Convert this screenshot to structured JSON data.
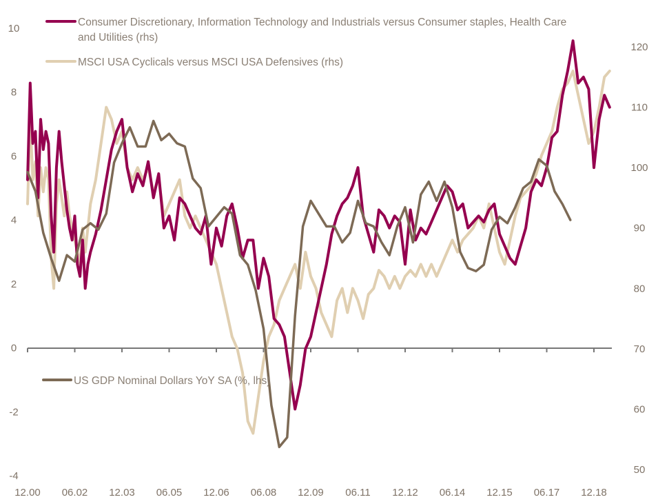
{
  "chart_data": {
    "type": "line",
    "title": "",
    "xlabel": "",
    "ylabel": "",
    "ylabel_right": "",
    "grid": false,
    "x_tick_labels": [
      "12.00",
      "06.02",
      "12.03",
      "06.05",
      "12.06",
      "06.08",
      "12.09",
      "06.11",
      "12.12",
      "06.14",
      "12.15",
      "06.17",
      "12.18"
    ],
    "x_range": [
      "2000-12",
      "2019-07"
    ],
    "ylim_left": [
      -4,
      10
    ],
    "ylim_right": [
      50,
      120
    ],
    "y_ticks_left": [
      "10",
      "8",
      "6",
      "4",
      "2",
      "0",
      "-2",
      "-4"
    ],
    "y_ticks_right": [
      "120",
      "110",
      "100",
      "90",
      "80",
      "70",
      "60",
      "50"
    ],
    "legend": [
      {
        "key": "discretionary",
        "label_lines": [
          "Consumer Discretionary, Information Technology and Industrials versus Consumer staples, Health Care",
          "and Utilities (rhs)"
        ],
        "color": "#95004f",
        "placement": "top-left"
      },
      {
        "key": "msci",
        "label_lines": [
          "MSCI USA Cyclicals versus MSCI USA Defensives (rhs)"
        ],
        "color": "#e0cfb1",
        "placement": "top-left"
      },
      {
        "key": "gdp",
        "label_lines": [
          "US GDP Nominal Dollars YoY SA (%, lhs)"
        ],
        "color": "#7d6a55",
        "placement": "middle-left"
      }
    ],
    "series": [
      {
        "name": "Consumer Discretionary, Information Technology and Industrials versus Consumer staples, Health Care and Utilities (rhs)",
        "axis": "right",
        "color": "#95004f",
        "x_months_from_dec2000": [
          0,
          1,
          2,
          3,
          4,
          5,
          6,
          7,
          8,
          9,
          10,
          11,
          12,
          13,
          14,
          15,
          16,
          17,
          18,
          19,
          20,
          21,
          22,
          23,
          24,
          26,
          28,
          30,
          32,
          34,
          36,
          38,
          40,
          42,
          44,
          46,
          48,
          50,
          52,
          54,
          56,
          58,
          60,
          62,
          64,
          66,
          68,
          70,
          72,
          74,
          76,
          78,
          80,
          82,
          84,
          86,
          88,
          90,
          92,
          94,
          96,
          98,
          100,
          102,
          104,
          106,
          108,
          110,
          112,
          114,
          116,
          118,
          120,
          122,
          124,
          126,
          128,
          130,
          132,
          134,
          136,
          138,
          140,
          142,
          144,
          146,
          148,
          150,
          152,
          154,
          156,
          158,
          160,
          162,
          164,
          166,
          168,
          170,
          172,
          174,
          176,
          178,
          180,
          182,
          184,
          186,
          188,
          190,
          192,
          194,
          196,
          198,
          200,
          202,
          204,
          206,
          208,
          210,
          212,
          214,
          216,
          218,
          220,
          222
        ],
        "values": [
          98,
          114,
          104,
          106,
          95,
          108,
          103,
          106,
          104,
          92,
          86,
          100,
          106,
          101,
          97,
          93,
          90,
          88,
          92,
          84,
          82,
          88,
          80,
          84,
          86,
          89,
          93,
          98,
          103,
          106,
          108,
          100,
          96,
          99,
          97,
          101,
          95,
          99,
          90,
          92,
          88,
          95,
          94,
          92,
          90,
          89,
          92,
          84,
          90,
          87,
          92,
          94,
          90,
          85,
          88,
          88,
          80,
          85,
          82,
          75,
          74,
          72,
          66,
          60,
          64,
          70,
          72,
          76,
          80,
          84,
          89,
          92,
          94,
          95,
          97,
          100,
          92,
          89,
          86,
          93,
          92,
          90,
          92,
          91,
          84,
          93,
          88,
          90,
          89,
          91,
          93,
          95,
          97,
          96,
          93,
          94,
          90,
          91,
          92,
          91,
          93,
          94,
          89,
          87,
          85,
          84,
          87,
          90,
          96,
          98,
          97,
          100,
          105,
          106,
          112,
          116,
          121,
          114,
          115,
          113,
          100,
          108,
          112,
          110,
          112,
          108
        ]
      },
      {
        "name": "MSCI USA Cyclicals versus MSCI USA Defensives (rhs)",
        "axis": "right",
        "color": "#e0cfb1",
        "x_months_from_dec2000": [
          0,
          1,
          2,
          3,
          4,
          5,
          6,
          7,
          8,
          9,
          10,
          11,
          12,
          13,
          14,
          15,
          16,
          17,
          18,
          19,
          20,
          21,
          22,
          23,
          24,
          26,
          28,
          30,
          32,
          34,
          36,
          38,
          40,
          42,
          44,
          46,
          48,
          50,
          52,
          54,
          56,
          58,
          60,
          62,
          64,
          66,
          68,
          70,
          72,
          74,
          76,
          78,
          80,
          82,
          84,
          86,
          88,
          90,
          92,
          94,
          96,
          98,
          100,
          102,
          104,
          106,
          108,
          110,
          112,
          114,
          116,
          118,
          120,
          122,
          124,
          126,
          128,
          130,
          132,
          134,
          136,
          138,
          140,
          142,
          144,
          146,
          148,
          150,
          152,
          154,
          156,
          158,
          160,
          162,
          164,
          166,
          168,
          170,
          172,
          174,
          176,
          178,
          180,
          182,
          184,
          186,
          188,
          190,
          192,
          194,
          196,
          198,
          200,
          202,
          204,
          206,
          208,
          210,
          212,
          214,
          216,
          218,
          220,
          222
        ],
        "values": [
          94,
          108,
          98,
          101,
          92,
          100,
          96,
          100,
          98,
          85,
          80,
          94,
          98,
          95,
          92,
          96,
          92,
          90,
          88,
          86,
          84,
          90,
          86,
          90,
          94,
          98,
          104,
          110,
          108,
          104,
          106,
          100,
          98,
          100,
          98,
          100,
          96,
          98,
          92,
          94,
          96,
          98,
          92,
          90,
          92,
          90,
          88,
          86,
          84,
          80,
          76,
          72,
          70,
          66,
          58,
          56,
          62,
          68,
          72,
          74,
          78,
          80,
          82,
          84,
          80,
          86,
          82,
          80,
          76,
          74,
          72,
          78,
          80,
          76,
          80,
          78,
          75,
          79,
          80,
          83,
          82,
          80,
          82,
          80,
          82,
          83,
          82,
          84,
          82,
          84,
          82,
          84,
          86,
          88,
          86,
          88,
          89,
          90,
          92,
          90,
          94,
          90,
          86,
          84,
          88,
          92,
          95,
          96,
          97,
          99,
          102,
          104,
          106,
          110,
          113,
          114,
          116,
          112,
          108,
          104,
          106,
          110,
          115,
          116,
          118,
          114
        ]
      },
      {
        "name": "US GDP Nominal Dollars YoY SA (%, lhs)",
        "axis": "left",
        "color": "#7d6a55",
        "x_months_from_dec2000": [
          0,
          3,
          6,
          9,
          12,
          15,
          18,
          21,
          24,
          27,
          30,
          33,
          36,
          39,
          42,
          45,
          48,
          51,
          54,
          57,
          60,
          63,
          66,
          69,
          72,
          75,
          78,
          81,
          84,
          87,
          90,
          93,
          96,
          99,
          102,
          105,
          108,
          111,
          114,
          117,
          120,
          123,
          126,
          129,
          132,
          135,
          138,
          141,
          144,
          147,
          150,
          153,
          156,
          159,
          162,
          165,
          168,
          171,
          174,
          177,
          180,
          183,
          186,
          189,
          192,
          195,
          198,
          201,
          204,
          207,
          210,
          213,
          216,
          219
        ],
        "values": [
          5.5,
          4.9,
          3.6,
          2.8,
          2.1,
          2.9,
          2.7,
          3.7,
          3.9,
          3.7,
          4.2,
          5.8,
          6.4,
          6.9,
          6.3,
          6.3,
          7.1,
          6.5,
          6.7,
          6.4,
          6.3,
          5.3,
          5.0,
          3.8,
          4.1,
          4.4,
          4.2,
          2.9,
          2.6,
          1.8,
          0.6,
          -1.8,
          -3.1,
          -2.8,
          1.0,
          3.8,
          4.6,
          4.2,
          3.8,
          3.8,
          3.3,
          3.6,
          4.6,
          3.9,
          3.8,
          3.3,
          2.9,
          3.8,
          4.4,
          3.3,
          4.8,
          5.2,
          4.6,
          5.2,
          4.4,
          3.0,
          2.5,
          2.4,
          2.6,
          3.7,
          4.1,
          3.9,
          4.4,
          5.0,
          5.2,
          5.9,
          5.7,
          4.9,
          4.5,
          4.0
        ]
      }
    ]
  }
}
